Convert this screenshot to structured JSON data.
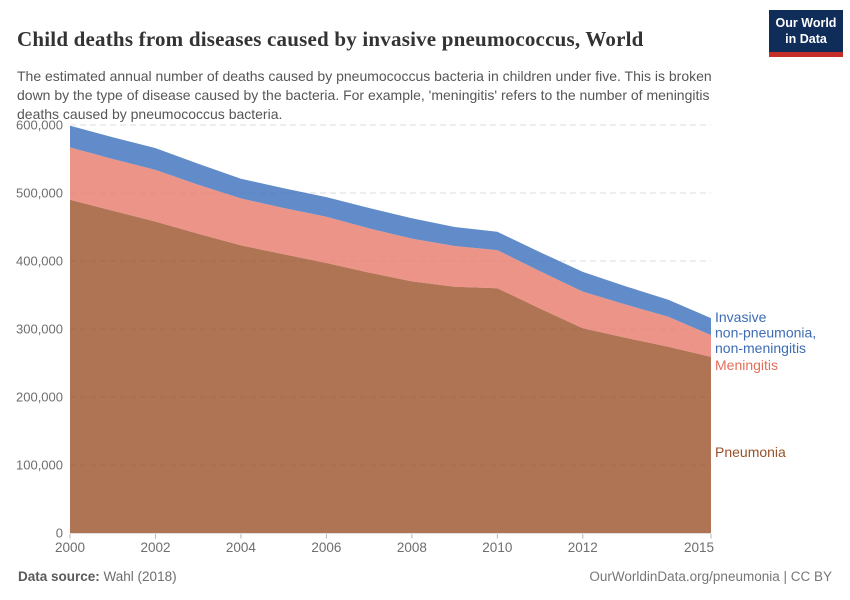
{
  "header": {
    "title": "Child deaths from diseases caused by invasive pneumococcus, World",
    "subtitle": "The estimated annual number of deaths caused by pneumococcus bacteria in children under five. This is broken down by the type of disease caused by the bacteria. For example, 'meningitis' refers to the number of meningitis deaths caused by pneumococcus bacteria.",
    "logo": {
      "line1": "Our World",
      "line2": "in Data",
      "bg_color": "#102d5a",
      "accent_color": "#c52d27"
    }
  },
  "footer": {
    "source_label": "Data source:",
    "source_value": "Wahl (2018)",
    "attribution": "OurWorldinData.org/pneumonia | CC BY"
  },
  "chart_data": {
    "type": "area",
    "stacked": true,
    "title": "Child deaths from diseases caused by invasive pneumococcus, World",
    "xlabel": "",
    "ylabel": "",
    "ylim": [
      0,
      600000
    ],
    "ytick_interval": 100000,
    "grid": "dashed",
    "legend_position": "right-of-plot",
    "fill_opacity": 0.8,
    "x": [
      2000,
      2001,
      2002,
      2003,
      2004,
      2005,
      2006,
      2007,
      2008,
      2009,
      2010,
      2011,
      2012,
      2013,
      2014,
      2015
    ],
    "xticks": [
      2000,
      2002,
      2004,
      2006,
      2008,
      2010,
      2012,
      2015
    ],
    "series": [
      {
        "name": "Pneumonia",
        "label_lines": [
          "Pneumonia"
        ],
        "fill": "#9a5129",
        "label_color": "#9a5129",
        "values": [
          490000,
          474000,
          458000,
          440000,
          423000,
          410000,
          397000,
          383000,
          370000,
          362000,
          360000,
          330000,
          301000,
          287000,
          274000,
          259000
        ]
      },
      {
        "name": "Meningitis",
        "label_lines": [
          "Meningitis"
        ],
        "fill": "#e8796a",
        "label_color": "#e56e5a",
        "values": [
          77000,
          76000,
          76000,
          72000,
          69000,
          68000,
          68000,
          65000,
          63000,
          60000,
          56000,
          55000,
          54000,
          49000,
          44000,
          32000
        ]
      },
      {
        "name": "Invasive non-pneumonia, non-meningitis",
        "label_lines": [
          "Invasive",
          "non-pneumonia,",
          "non-meningitis"
        ],
        "fill": "#3a6fbc",
        "label_color": "#3d6cb4",
        "values": [
          32000,
          32000,
          32000,
          31000,
          29000,
          29000,
          29000,
          30000,
          30000,
          28000,
          27000,
          28000,
          29000,
          27000,
          25000,
          25000
        ]
      }
    ]
  }
}
